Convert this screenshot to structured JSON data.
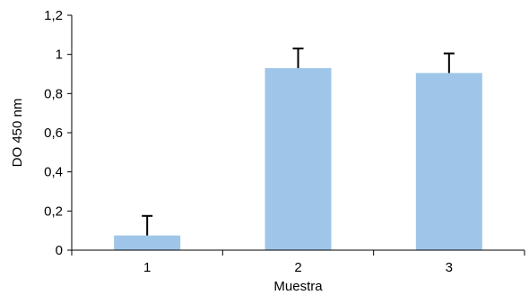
{
  "chart_data": {
    "type": "bar",
    "categories": [
      "1",
      "2",
      "3"
    ],
    "values": [
      0.075,
      0.93,
      0.905
    ],
    "error_upper": [
      0.1,
      0.1,
      0.1
    ],
    "xlabel": "Muestra",
    "ylabel": "DO 450 nm",
    "ylim": [
      0,
      1.2
    ],
    "yticks": [
      "0",
      "0,2",
      "0,4",
      "0,6",
      "0,8",
      "1",
      "1,2"
    ],
    "grid": false,
    "legend": "none",
    "colors": {
      "bar": "#9fc6e9",
      "axis": "#000000",
      "error_bar": "#000000"
    }
  }
}
